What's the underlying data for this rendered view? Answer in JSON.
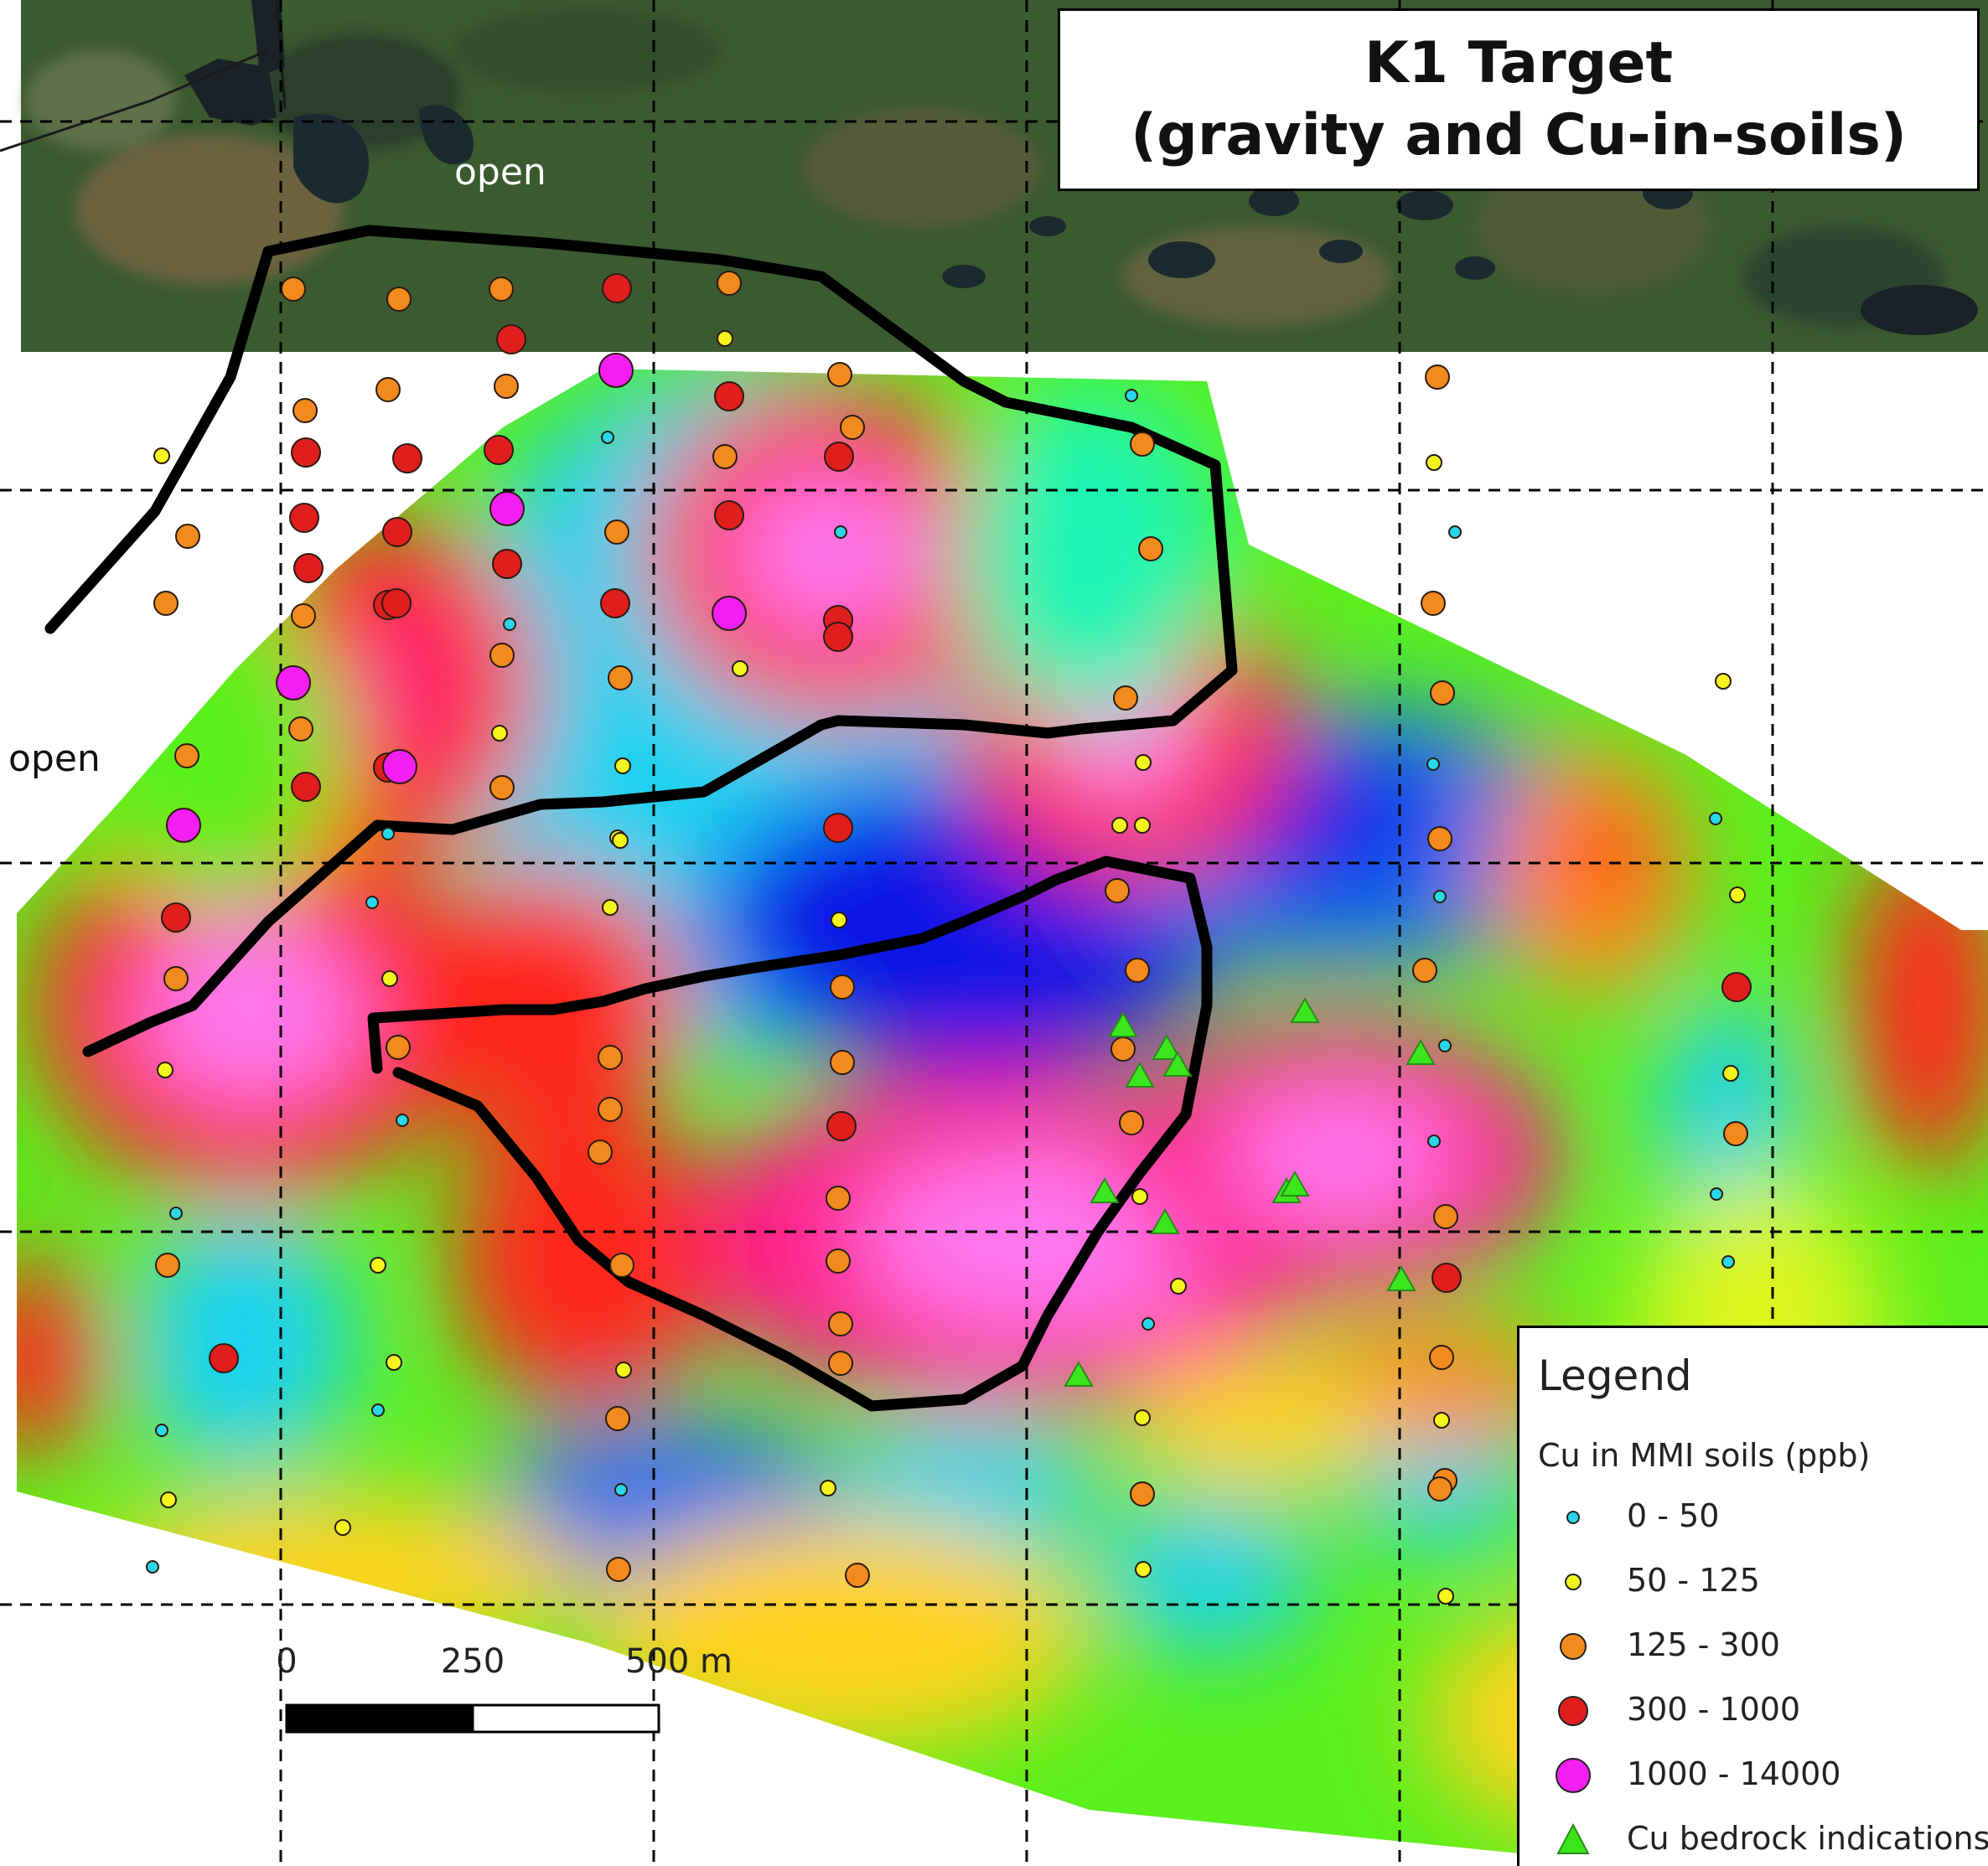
{
  "title": {
    "line1": "K1 Target",
    "line2": "(gravity and Cu-in-soils)"
  },
  "map_labels": {
    "open_north": "open",
    "open_west": "open"
  },
  "scale_bar": {
    "labels": [
      "0",
      "250",
      "500 m"
    ]
  },
  "legend": {
    "title": "Legend",
    "subtitle": "Cu in MMI soils (ppb)",
    "items": [
      {
        "label": "0 - 50",
        "symbol": "circle",
        "color": "#29d8e8"
      },
      {
        "label": "50 - 125",
        "symbol": "circle",
        "color": "#f5f51e"
      },
      {
        "label": "125 - 300",
        "symbol": "circle",
        "color": "#f28a1e"
      },
      {
        "label": "300 - 1000",
        "symbol": "circle",
        "color": "#e01e1e"
      },
      {
        "label": "1000 - 14000",
        "symbol": "circle",
        "color": "#f21ef2"
      },
      {
        "label": "Cu bedrock indications",
        "symbol": "triangle",
        "color": "#3ce61e"
      }
    ]
  },
  "colors": {
    "gravity_ramp": [
      "#0a14e6",
      "#1e6ef0",
      "#1ed2f0",
      "#1ef5b4",
      "#5af01e",
      "#dcf51e",
      "#ffd21e",
      "#ff8c1e",
      "#ff281e",
      "#ff1e8c",
      "#ff78f0",
      "#ffc8fa"
    ],
    "outline": "#000000",
    "grid": "#000000"
  }
}
